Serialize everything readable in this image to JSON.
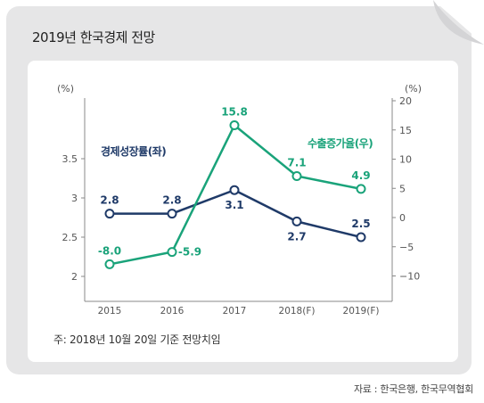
{
  "title": "2019년 한국경제 전망",
  "note": "주: 2018년 10월 20일 기준 전망치임",
  "source": "자료 : 한국은행, 한국무역협회",
  "colors": {
    "navy": "#1f3a68",
    "green": "#1aa37a",
    "card": "#e6e6e7"
  },
  "chart_data": {
    "type": "line",
    "categories": [
      "2015",
      "2016",
      "2017",
      "2018(F)",
      "2019(F)"
    ],
    "left_axis": {
      "unit": "(%)",
      "ticks": [
        "3.5",
        "3",
        "2.5",
        "2"
      ],
      "ylim": [
        2,
        3.5
      ]
    },
    "right_axis": {
      "unit": "(%)",
      "ticks": [
        "20",
        "15",
        "10",
        "5",
        "0",
        "−5",
        "−10"
      ],
      "ylim": [
        -10,
        20
      ]
    },
    "series": [
      {
        "name": "경제성장률(좌)",
        "axis": "left",
        "color": "#1f3a68",
        "values": [
          2.8,
          2.8,
          3.1,
          2.7,
          2.5
        ],
        "labels": [
          "2.8",
          "2.8",
          "3.1",
          "2.7",
          "2.5"
        ]
      },
      {
        "name": "수출증가율(우)",
        "axis": "right",
        "color": "#1aa37a",
        "values": [
          -8.0,
          -5.9,
          15.8,
          7.1,
          4.9
        ],
        "labels": [
          "-8.0",
          "-5.9",
          "15.8",
          "7.1",
          "4.9"
        ]
      }
    ],
    "grid": false
  }
}
